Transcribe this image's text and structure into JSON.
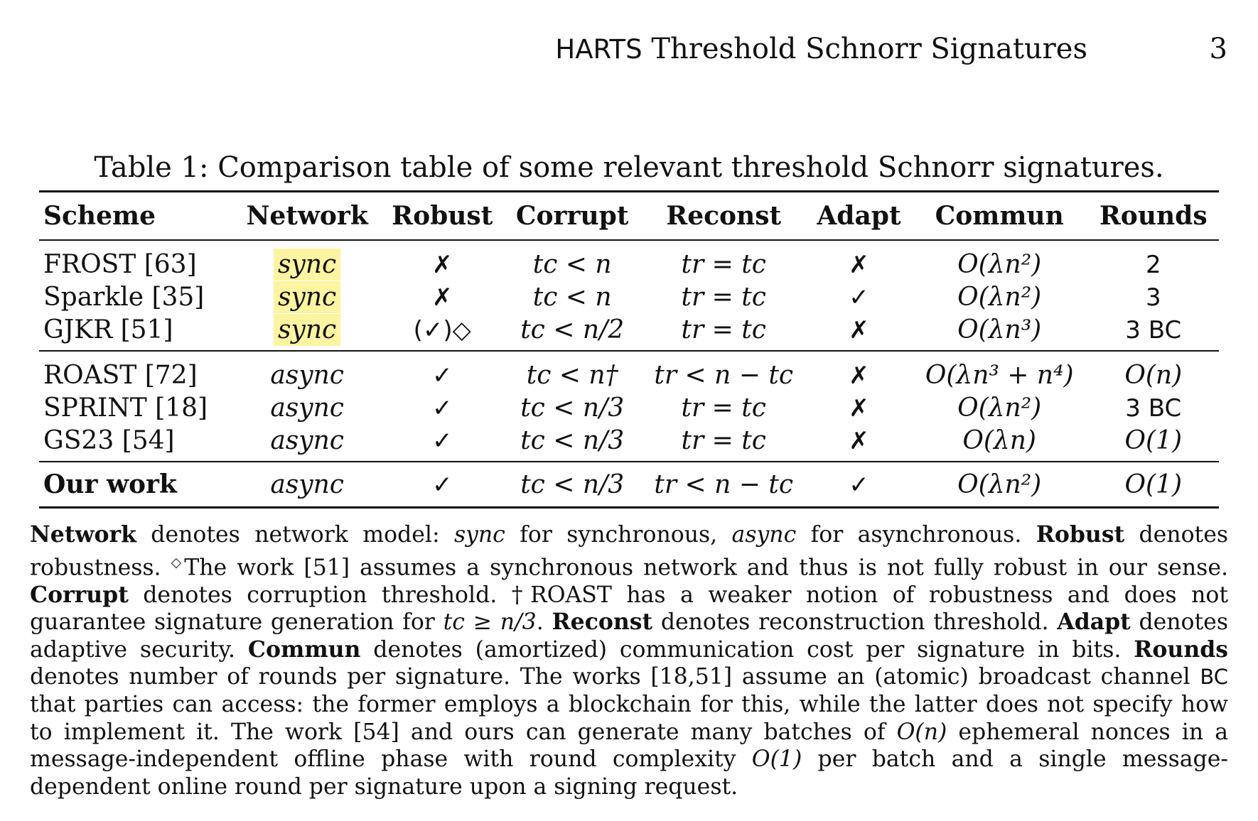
{
  "header": {
    "title_sans": "HARTS",
    "title_rest": "Threshold Schnorr Signatures",
    "page_number": "3"
  },
  "table": {
    "caption": "Table 1: Comparison table of some relevant threshold Schnorr signatures.",
    "columns": [
      "Scheme",
      "Network",
      "Robust",
      "Corrupt",
      "Reconst",
      "Adapt",
      "Commun",
      "Rounds"
    ],
    "rows": [
      {
        "scheme": "FROST [63]",
        "network": "sync",
        "robust": "✗",
        "corrupt": "tc < n",
        "reconst": "tr = tc",
        "adapt": "✗",
        "commun": "O(λn²)",
        "rounds": "2"
      },
      {
        "scheme": "Sparkle [35]",
        "network": "sync",
        "robust": "✗",
        "corrupt": "tc < n",
        "reconst": "tr = tc",
        "adapt": "✓",
        "commun": "O(λn²)",
        "rounds": "3"
      },
      {
        "scheme": "GJKR [51]",
        "network": "sync",
        "robust": "(✓)◇",
        "corrupt": "tc < n/2",
        "reconst": "tr = tc",
        "adapt": "✗",
        "commun": "O(λn³)",
        "rounds": "3 BC"
      },
      {
        "scheme": "ROAST [72]",
        "network": "async",
        "robust": "✓",
        "corrupt": "tc < n†",
        "reconst": "tr < n − tc",
        "adapt": "✗",
        "commun": "O(λn³ + n⁴)",
        "rounds": "O(n)"
      },
      {
        "scheme": "SPRINT [18]",
        "network": "async",
        "robust": "✓",
        "corrupt": "tc < n/3",
        "reconst": "tr = tc",
        "adapt": "✗",
        "commun": "O(λn²)",
        "rounds": "3 BC"
      },
      {
        "scheme": "GS23 [54]",
        "network": "async",
        "robust": "✓",
        "corrupt": "tc < n/3",
        "reconst": "tr = tc",
        "adapt": "✗",
        "commun": "O(λn)",
        "rounds": "O(1)"
      },
      {
        "scheme": "Our work",
        "network": "async",
        "robust": "✓",
        "corrupt": "tc < n/3",
        "reconst": "tr < n − tc",
        "adapt": "✓",
        "commun": "O(λn²)",
        "rounds": "O(1)"
      }
    ],
    "highlight_color": "#fdf4a1"
  },
  "note": {
    "network_kw": "Network",
    "t1": " denotes network model: ",
    "sync": "sync",
    "t2": " for synchronous, ",
    "async": "async",
    "t3": " for asynchronous. ",
    "robust_kw": "Robust",
    "t4": " denotes robustness. ",
    "diamond": "◇",
    "t5": "The work [51] assumes a synchronous network and thus is not fully robust in our sense. ",
    "corrupt_kw": "Corrupt",
    "t6": " denotes corruption threshold. †ROAST has a weaker notion of robustness and does not guarantee signature generation for ",
    "cond": "tc ≥ n/3",
    "t7": ". ",
    "reconst_kw": "Reconst",
    "t8": " denotes reconstruction threshold. ",
    "adapt_kw": "Adapt",
    "t9": " denotes adaptive security. ",
    "commun_kw": "Commun",
    "t10": " denotes (amortized) communication cost per signature in bits. ",
    "rounds_kw": "Rounds",
    "t11": " denotes number of rounds per signature. The works [18,51] assume an (atomic) broadcast channel ",
    "bc": "BC",
    "t12": " that parties can access: the former employs a blockchain for this, while the latter does not specify how to implement it. The work [54] and ours can generate many batches of ",
    "on": "O(n)",
    "t13": " ephemeral nonces in a message-independent offline phase with round complexity ",
    "o1": "O(1)",
    "t14": " per batch and a single message-dependent online round per signature upon a signing request."
  }
}
